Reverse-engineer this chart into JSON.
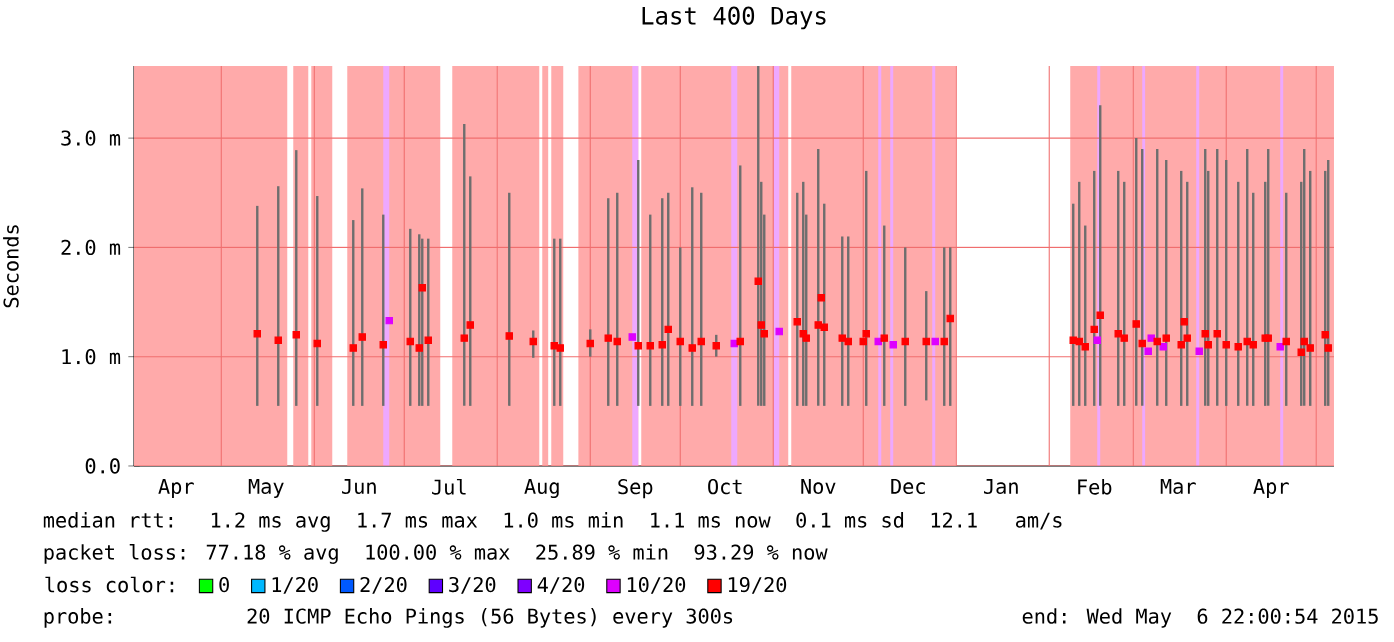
{
  "chart_data": {
    "type": "scatter",
    "title": "Last 400 Days",
    "ylabel": "Seconds",
    "legend_title": "loss color:",
    "xlim": [
      "2014-04-01T22:00",
      "2015-05-06T22:00"
    ],
    "xticks": [
      {
        "value": "2014-05-01",
        "label": null
      },
      {
        "value": "2014-06-01",
        "label": null
      },
      {
        "value": "2014-07-01",
        "label": null
      },
      {
        "value": "2014-08-01",
        "label": null
      },
      {
        "value": "2014-09-01",
        "label": null
      },
      {
        "value": "2014-10-01",
        "label": null
      },
      {
        "value": "2014-11-01",
        "label": null
      },
      {
        "value": "2014-12-01",
        "label": null
      },
      {
        "value": "2015-01-01",
        "label": null
      },
      {
        "value": "2015-02-01",
        "label": null
      },
      {
        "value": "2015-03-01",
        "label": null
      },
      {
        "value": "2015-04-01",
        "label": null
      },
      {
        "value": "2015-05-01",
        "label": null
      },
      {
        "value": "2014-04-16",
        "label": "Apr"
      },
      {
        "value": "2014-05-16",
        "label": "May"
      },
      {
        "value": "2014-06-16",
        "label": "Jun"
      },
      {
        "value": "2014-07-16",
        "label": "Jul"
      },
      {
        "value": "2014-08-16",
        "label": "Aug"
      },
      {
        "value": "2014-09-16",
        "label": "Sep"
      },
      {
        "value": "2014-10-16",
        "label": "Oct"
      },
      {
        "value": "2014-11-16",
        "label": "Nov"
      },
      {
        "value": "2014-12-16",
        "label": "Dec"
      },
      {
        "value": "2015-01-16",
        "label": "Jan"
      },
      {
        "value": "2015-02-16",
        "label": "Feb"
      },
      {
        "value": "2015-03-16",
        "label": "Mar"
      },
      {
        "value": "2015-04-16",
        "label": "Apr"
      }
    ],
    "ylim": [
      0,
      3.66
    ],
    "yticks": [
      {
        "value": 0,
        "label": "0.0"
      },
      {
        "value": 1,
        "label": "1.0 m"
      },
      {
        "value": 2,
        "label": "2.0 m"
      },
      {
        "value": 3,
        "label": "3.0 m"
      }
    ],
    "grid": true,
    "legend": "bottom",
    "marker": "square",
    "bands": [
      {
        "axis": "x",
        "from": "2014-04-01T22:00",
        "to": "2014-05-23",
        "color": "#ffaaaa"
      },
      {
        "axis": "x",
        "from": "2014-05-25",
        "to": "2014-05-30",
        "color": "#ffaaaa"
      },
      {
        "axis": "x",
        "from": "2014-05-31",
        "to": "2014-06-07",
        "color": "#ffaaaa"
      },
      {
        "axis": "x",
        "from": "2014-06-12",
        "to": "2014-07-13",
        "color": "#ffaaaa"
      },
      {
        "axis": "x",
        "from": "2014-07-17",
        "to": "2014-08-15",
        "color": "#ffaaaa"
      },
      {
        "axis": "x",
        "from": "2014-08-16",
        "to": "2014-08-18",
        "color": "#ffaaaa"
      },
      {
        "axis": "x",
        "from": "2014-08-19",
        "to": "2014-08-23",
        "color": "#ffaaaa"
      },
      {
        "axis": "x",
        "from": "2014-08-28",
        "to": "2014-09-17",
        "color": "#ffaaaa"
      },
      {
        "axis": "x",
        "from": "2014-09-18",
        "to": "2014-11-06",
        "color": "#ffaaaa"
      },
      {
        "axis": "x",
        "from": "2014-11-07",
        "to": "2015-01-01",
        "color": "#ffaaaa"
      },
      {
        "axis": "x",
        "from": "2015-02-08",
        "to": "2015-05-06T22:00",
        "color": "#ffaaaa"
      },
      {
        "axis": "x",
        "from": "2014-06-24",
        "to": "2014-06-26",
        "color": "#eea8ff"
      },
      {
        "axis": "x",
        "from": "2014-09-15",
        "to": "2014-09-17",
        "color": "#eea8ff"
      },
      {
        "axis": "x",
        "from": "2014-10-18",
        "to": "2014-10-20",
        "color": "#eea8ff"
      },
      {
        "axis": "x",
        "from": "2014-11-01",
        "to": "2014-11-03",
        "color": "#eea8ff"
      },
      {
        "axis": "x",
        "from": "2014-12-06",
        "to": "2014-12-07",
        "color": "#eea8ff"
      },
      {
        "axis": "x",
        "from": "2014-12-10",
        "to": "2014-12-11",
        "color": "#eea8ff"
      },
      {
        "axis": "x",
        "from": "2014-12-24",
        "to": "2014-12-25",
        "color": "#eea8ff"
      },
      {
        "axis": "x",
        "from": "2015-02-17",
        "to": "2015-02-18",
        "color": "#eea8ff"
      },
      {
        "axis": "x",
        "from": "2015-03-04",
        "to": "2015-03-05",
        "color": "#eea8ff"
      },
      {
        "axis": "x",
        "from": "2015-03-22",
        "to": "2015-03-23",
        "color": "#eea8ff"
      },
      {
        "axis": "x",
        "from": "2015-04-19",
        "to": "2015-04-20",
        "color": "#eea8ff"
      }
    ],
    "series": [
      {
        "name": "0",
        "color": "#00ff00"
      },
      {
        "name": "1/20",
        "color": "#00b8ff"
      },
      {
        "name": "2/20",
        "color": "#0059ff"
      },
      {
        "name": "3/20",
        "color": "#5e00ff"
      },
      {
        "name": "4/20",
        "color": "#7e00ff"
      },
      {
        "name": "10/20",
        "color": "#dd00ff",
        "x": [
          "2014-06-26",
          "2014-09-15",
          "2014-10-19",
          "2014-11-03",
          "2014-12-06",
          "2014-12-11",
          "2014-12-25",
          "2015-02-17",
          "2015-03-06",
          "2015-03-07",
          "2015-03-11",
          "2015-03-23",
          "2015-04-19"
        ],
        "values": [
          1.33,
          1.18,
          1.12,
          1.23,
          1.14,
          1.11,
          1.14,
          1.15,
          1.05,
          1.17,
          1.09,
          1.05,
          1.09
        ]
      },
      {
        "name": "19/20",
        "color": "#ff0000",
        "x": [
          "2014-05-13",
          "2014-05-20",
          "2014-05-26",
          "2014-06-02",
          "2014-06-14",
          "2014-06-17",
          "2014-06-24",
          "2014-07-03",
          "2014-07-06",
          "2014-07-07",
          "2014-07-09",
          "2014-07-21",
          "2014-07-23",
          "2014-08-05",
          "2014-08-13",
          "2014-08-20",
          "2014-08-22",
          "2014-09-01",
          "2014-09-07",
          "2014-09-10",
          "2014-09-17",
          "2014-09-21",
          "2014-09-25",
          "2014-09-27",
          "2014-10-01",
          "2014-10-05",
          "2014-10-08",
          "2014-10-13",
          "2014-10-21",
          "2014-10-27",
          "2014-10-28",
          "2014-10-29",
          "2014-11-09",
          "2014-11-11",
          "2014-11-12",
          "2014-11-16",
          "2014-11-17",
          "2014-11-18",
          "2014-11-24",
          "2014-11-26",
          "2014-12-01",
          "2014-12-02",
          "2014-12-08",
          "2014-12-15",
          "2014-12-22",
          "2014-12-28",
          "2014-12-30",
          "2015-02-09",
          "2015-02-11",
          "2015-02-13",
          "2015-02-16",
          "2015-02-18",
          "2015-02-24",
          "2015-02-26",
          "2015-03-02",
          "2015-03-04",
          "2015-03-09",
          "2015-03-12",
          "2015-03-17",
          "2015-03-18",
          "2015-03-19",
          "2015-03-25",
          "2015-03-26",
          "2015-03-29",
          "2015-04-01",
          "2015-04-05",
          "2015-04-08",
          "2015-04-10",
          "2015-04-14",
          "2015-04-15",
          "2015-04-21",
          "2015-04-26",
          "2015-04-27",
          "2015-04-29",
          "2015-05-04",
          "2015-05-05"
        ],
        "values": [
          1.21,
          1.15,
          1.2,
          1.12,
          1.08,
          1.18,
          1.11,
          1.14,
          1.08,
          1.63,
          1.15,
          1.17,
          1.29,
          1.19,
          1.14,
          1.1,
          1.08,
          1.12,
          1.17,
          1.14,
          1.1,
          1.1,
          1.11,
          1.25,
          1.14,
          1.08,
          1.14,
          1.1,
          1.14,
          1.69,
          1.29,
          1.21,
          1.32,
          1.21,
          1.17,
          1.29,
          1.54,
          1.27,
          1.17,
          1.14,
          1.14,
          1.21,
          1.17,
          1.14,
          1.14,
          1.14,
          1.35,
          1.15,
          1.14,
          1.09,
          1.25,
          1.38,
          1.21,
          1.17,
          1.3,
          1.12,
          1.14,
          1.17,
          1.11,
          1.32,
          1.17,
          1.21,
          1.11,
          1.21,
          1.11,
          1.09,
          1.14,
          1.11,
          1.17,
          1.17,
          1.14,
          1.04,
          1.14,
          1.08,
          1.2,
          1.08
        ],
        "errors": [
          [
            0.55,
            2.38
          ],
          [
            0.55,
            2.56
          ],
          [
            0.55,
            2.89
          ],
          [
            0.55,
            2.47
          ],
          [
            0.55,
            2.25
          ],
          [
            0.55,
            2.54
          ],
          [
            0.55,
            2.3
          ],
          [
            0.55,
            2.17
          ],
          [
            0.55,
            2.12
          ],
          [
            0.55,
            2.08
          ],
          [
            0.55,
            2.08
          ],
          [
            0.55,
            3.13
          ],
          [
            0.55,
            2.65
          ],
          [
            0.55,
            2.5
          ],
          [
            0.99,
            1.24
          ],
          [
            0.55,
            2.08
          ],
          [
            0.55,
            2.08
          ],
          [
            1.0,
            1.25
          ],
          [
            0.55,
            2.45
          ],
          [
            0.55,
            2.5
          ],
          [
            0.55,
            2.8
          ],
          [
            0.55,
            2.3
          ],
          [
            0.55,
            2.45
          ],
          [
            0.55,
            2.5
          ],
          [
            0.55,
            2.0
          ],
          [
            0.55,
            2.55
          ],
          [
            0.55,
            2.5
          ],
          [
            1.0,
            1.2
          ],
          [
            0.55,
            2.75
          ],
          [
            0.55,
            3.66
          ],
          [
            0.55,
            2.6
          ],
          [
            0.55,
            2.3
          ],
          [
            0.55,
            2.5
          ],
          [
            0.55,
            2.6
          ],
          [
            0.55,
            2.3
          ],
          [
            0.55,
            2.9
          ],
          null,
          [
            0.55,
            2.4
          ],
          [
            0.55,
            2.1
          ],
          [
            0.55,
            2.1
          ],
          null,
          [
            0.55,
            2.7
          ],
          [
            0.55,
            2.2
          ],
          [
            0.55,
            2.0
          ],
          [
            0.6,
            1.6
          ],
          [
            0.55,
            2.0
          ],
          [
            0.55,
            2.0
          ],
          [
            0.55,
            2.4
          ],
          [
            0.55,
            2.6
          ],
          [
            0.55,
            2.2
          ],
          [
            0.55,
            2.7
          ],
          [
            0.55,
            3.3
          ],
          [
            0.55,
            2.7
          ],
          [
            0.55,
            2.6
          ],
          [
            0.55,
            3.0
          ],
          [
            0.55,
            2.9
          ],
          [
            0.55,
            2.9
          ],
          [
            0.55,
            2.8
          ],
          [
            0.55,
            2.7
          ],
          null,
          [
            0.55,
            2.6
          ],
          [
            0.55,
            2.9
          ],
          [
            0.55,
            2.7
          ],
          [
            0.55,
            2.9
          ],
          [
            0.55,
            2.8
          ],
          [
            0.55,
            2.6
          ],
          [
            0.55,
            2.9
          ],
          [
            0.55,
            2.5
          ],
          [
            0.55,
            2.6
          ],
          [
            0.55,
            2.9
          ],
          [
            0.55,
            2.5
          ],
          [
            0.55,
            2.6
          ],
          [
            0.55,
            2.9
          ],
          [
            0.55,
            2.7
          ],
          [
            0.55,
            2.7
          ],
          [
            0.55,
            2.8
          ]
        ]
      }
    ],
    "annotations": [
      "median rtt:  1.2 ms avg  1.7 ms max  1.0 ms min  1.1 ms now  0.1 ms sd  12.1   am/s",
      "packet loss: 77.18 % avg  100.00 % max  25.89 % min  93.29 % now",
      "probe:        20 ICMP Echo Pings (56 Bytes) every 300s",
      "end: Wed May  6 22:00:54 2015"
    ]
  }
}
